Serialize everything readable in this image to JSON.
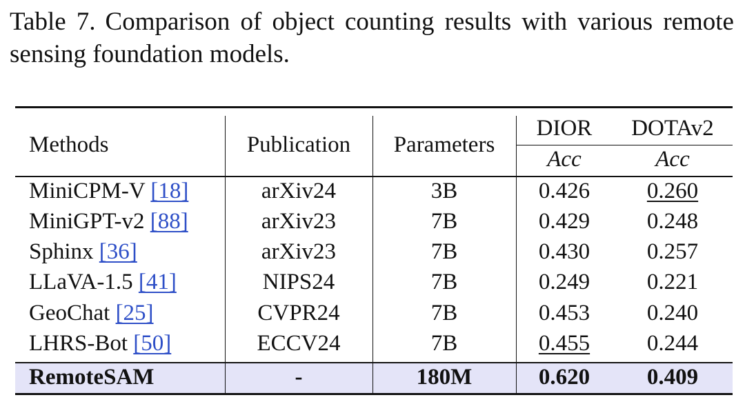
{
  "caption": {
    "label": "Table 7.",
    "text": "Comparison of object counting results with various remote sensing foundation models."
  },
  "header": {
    "methods": "Methods",
    "publication": "Publication",
    "parameters": "Parameters",
    "dior": "DIOR",
    "dotav2": "DOTAv2",
    "metric": "Acc"
  },
  "rows": [
    {
      "method": "MiniCPM-V",
      "ref": "[18]",
      "publication": "arXiv24",
      "parameters": "3B",
      "dior": "0.426",
      "dotav2": "0.260"
    },
    {
      "method": "MiniGPT-v2",
      "ref": "[88]",
      "publication": "arXiv23",
      "parameters": "7B",
      "dior": "0.429",
      "dotav2": "0.248"
    },
    {
      "method": "Sphinx",
      "ref": "[36]",
      "publication": "arXiv23",
      "parameters": "7B",
      "dior": "0.430",
      "dotav2": "0.257"
    },
    {
      "method": "LLaVA-1.5",
      "ref": "[41]",
      "publication": "NIPS24",
      "parameters": "7B",
      "dior": "0.249",
      "dotav2": "0.221"
    },
    {
      "method": "GeoChat",
      "ref": "[25]",
      "publication": "CVPR24",
      "parameters": "7B",
      "dior": "0.453",
      "dotav2": "0.240"
    },
    {
      "method": "LHRS-Bot",
      "ref": "[50]",
      "publication": "ECCV24",
      "parameters": "7B",
      "dior": "0.455",
      "dotav2": "0.244"
    }
  ],
  "highlight_row": {
    "method": "RemoteSAM",
    "publication": "-",
    "parameters": "180M",
    "dior": "0.620",
    "dotav2": "0.409",
    "background": "#e4e4f8"
  },
  "colors": {
    "reference_link": "#2e4fc7"
  }
}
